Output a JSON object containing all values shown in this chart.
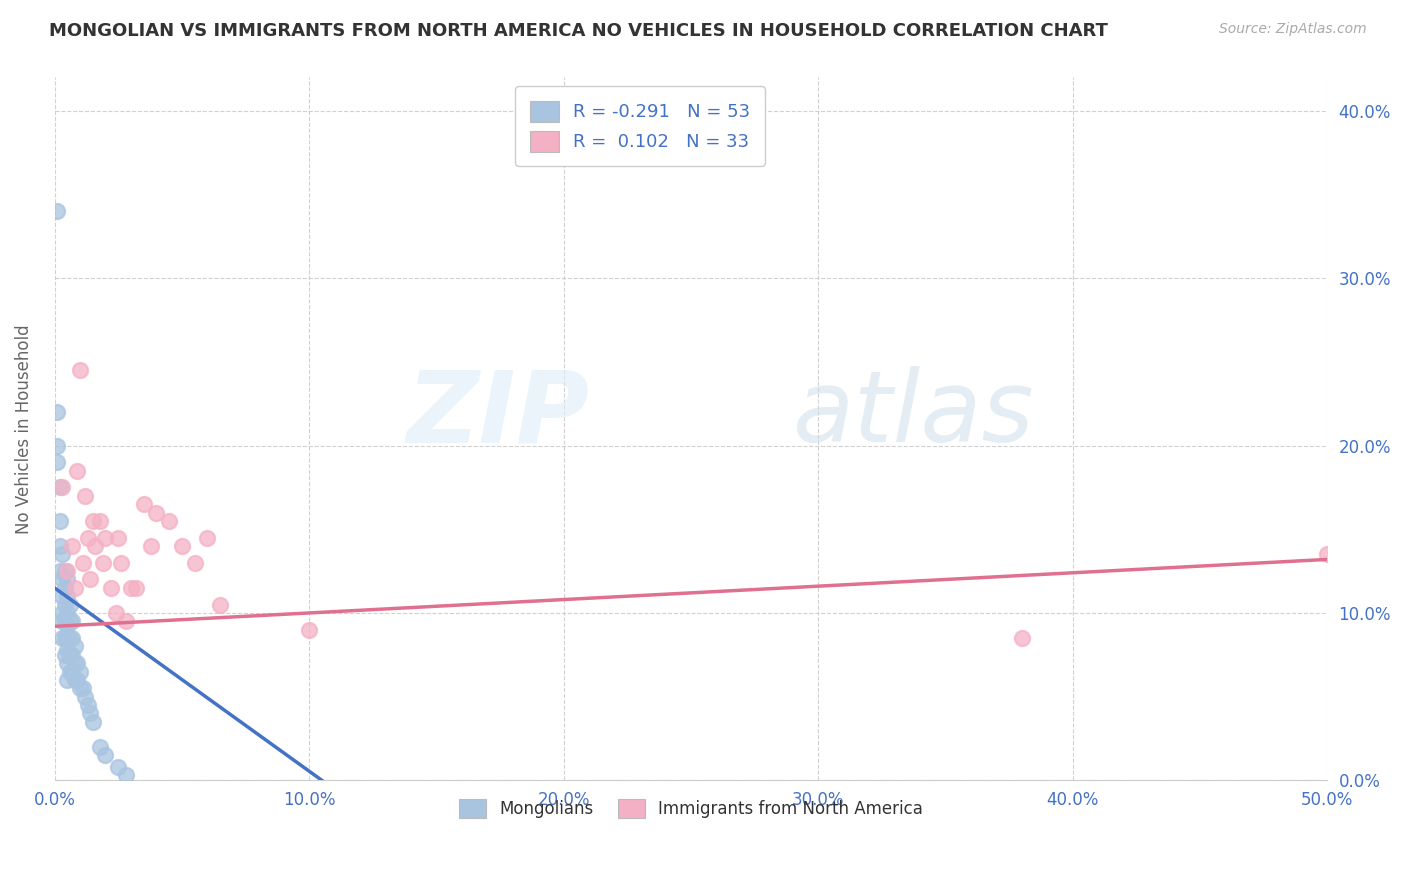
{
  "title": "MONGOLIAN VS IMMIGRANTS FROM NORTH AMERICA NO VEHICLES IN HOUSEHOLD CORRELATION CHART",
  "source": "Source: ZipAtlas.com",
  "ylabel_label": "No Vehicles in Household",
  "xlim": [
    0.0,
    0.5
  ],
  "ylim": [
    0.0,
    0.42
  ],
  "xtick_positions": [
    0.0,
    0.1,
    0.2,
    0.3,
    0.4,
    0.5
  ],
  "xtick_labels": [
    "0.0%",
    "10.0%",
    "20.0%",
    "30.0%",
    "40.0%",
    "50.0%"
  ],
  "ytick_positions": [
    0.0,
    0.1,
    0.2,
    0.3,
    0.4
  ],
  "ytick_labels": [
    "0.0%",
    "10.0%",
    "20.0%",
    "30.0%",
    "40.0%"
  ],
  "tick_color": "#4472c4",
  "mongolian_color": "#a8c4e0",
  "immigrant_color": "#f4b0c4",
  "mongolian_line_color": "#4472c4",
  "immigrant_line_color": "#e07090",
  "watermark_zip": "ZIP",
  "watermark_atlas": "atlas",
  "background_color": "#ffffff",
  "mongolian_x": [
    0.001,
    0.001,
    0.001,
    0.002,
    0.002,
    0.002,
    0.002,
    0.003,
    0.003,
    0.003,
    0.003,
    0.003,
    0.003,
    0.004,
    0.004,
    0.004,
    0.004,
    0.004,
    0.004,
    0.005,
    0.005,
    0.005,
    0.005,
    0.005,
    0.005,
    0.005,
    0.005,
    0.006,
    0.006,
    0.006,
    0.006,
    0.006,
    0.007,
    0.007,
    0.007,
    0.007,
    0.008,
    0.008,
    0.008,
    0.009,
    0.009,
    0.01,
    0.01,
    0.011,
    0.012,
    0.013,
    0.014,
    0.015,
    0.018,
    0.02,
    0.025,
    0.028,
    0.001
  ],
  "mongolian_y": [
    0.34,
    0.22,
    0.2,
    0.175,
    0.155,
    0.14,
    0.125,
    0.135,
    0.12,
    0.11,
    0.1,
    0.095,
    0.085,
    0.125,
    0.115,
    0.105,
    0.095,
    0.085,
    0.075,
    0.12,
    0.11,
    0.1,
    0.092,
    0.085,
    0.078,
    0.07,
    0.06,
    0.105,
    0.095,
    0.085,
    0.075,
    0.065,
    0.095,
    0.085,
    0.075,
    0.065,
    0.08,
    0.07,
    0.06,
    0.07,
    0.06,
    0.065,
    0.055,
    0.055,
    0.05,
    0.045,
    0.04,
    0.035,
    0.02,
    0.015,
    0.008,
    0.003,
    0.19
  ],
  "immigrant_x": [
    0.003,
    0.005,
    0.007,
    0.008,
    0.009,
    0.01,
    0.011,
    0.012,
    0.013,
    0.014,
    0.015,
    0.016,
    0.018,
    0.019,
    0.02,
    0.022,
    0.024,
    0.025,
    0.026,
    0.028,
    0.03,
    0.032,
    0.035,
    0.038,
    0.04,
    0.045,
    0.05,
    0.055,
    0.06,
    0.065,
    0.1,
    0.38,
    0.5
  ],
  "immigrant_y": [
    0.175,
    0.125,
    0.14,
    0.115,
    0.185,
    0.245,
    0.13,
    0.17,
    0.145,
    0.12,
    0.155,
    0.14,
    0.155,
    0.13,
    0.145,
    0.115,
    0.1,
    0.145,
    0.13,
    0.095,
    0.115,
    0.115,
    0.165,
    0.14,
    0.16,
    0.155,
    0.14,
    0.13,
    0.145,
    0.105,
    0.09,
    0.085,
    0.135
  ],
  "mongolian_trend_x": [
    0.0,
    0.105
  ],
  "mongolian_trend_y": [
    0.115,
    0.0
  ],
  "immigrant_trend_x": [
    0.0,
    0.5
  ],
  "immigrant_trend_y": [
    0.092,
    0.132
  ]
}
